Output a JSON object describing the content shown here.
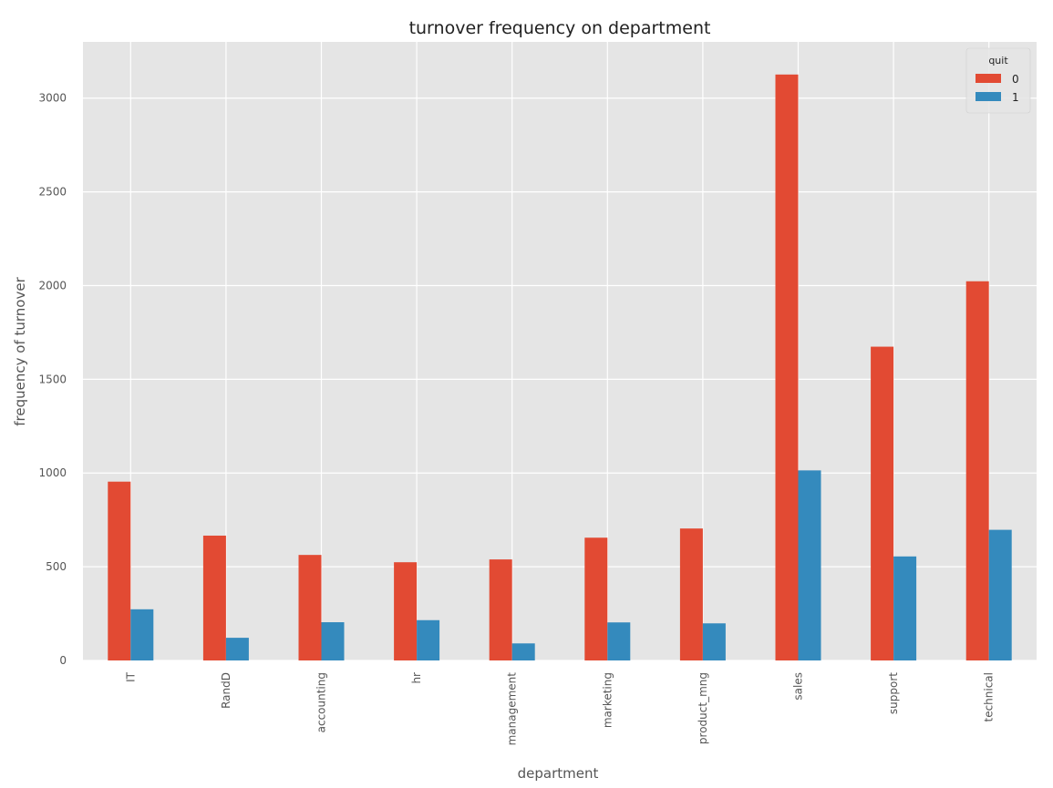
{
  "chart_data": {
    "type": "bar",
    "title": "turnover frequency on department",
    "xlabel": "department",
    "ylabel": "frequency of turnover",
    "categories": [
      "IT",
      "RandD",
      "accounting",
      "hr",
      "management",
      "marketing",
      "product_mng",
      "sales",
      "support",
      "technical"
    ],
    "series": [
      {
        "name": "0",
        "color": "#E24A33",
        "values": [
          954,
          666,
          563,
          524,
          539,
          655,
          704,
          3126,
          1674,
          2023
        ]
      },
      {
        "name": "1",
        "color": "#348ABD",
        "values": [
          273,
          121,
          204,
          215,
          91,
          203,
          198,
          1014,
          555,
          697
        ]
      }
    ],
    "ylim": [
      0,
      3300
    ],
    "yticks": [
      0,
      500,
      1000,
      1500,
      2000,
      2500,
      3000
    ],
    "legend": {
      "title": "quit",
      "position": "top-right"
    },
    "grid": true,
    "style": {
      "plot_background": "#E5E5E5",
      "grid_color": "#FFFFFF"
    }
  }
}
